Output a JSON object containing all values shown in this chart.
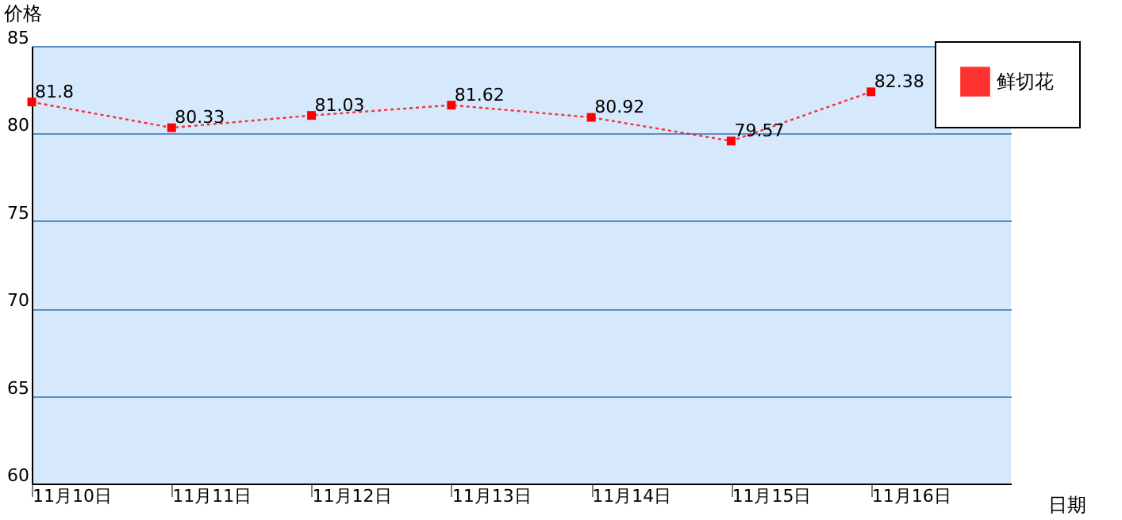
{
  "chart_data": {
    "type": "line",
    "xlabel": "日期",
    "ylabel": "价格",
    "categories": [
      "11月10日",
      "11月11日",
      "11月12日",
      "11月13日",
      "11月14日",
      "11月15日",
      "11月16日"
    ],
    "series": [
      {
        "name": "鲜切花",
        "color": "#ff0000",
        "values": [
          81.8,
          80.33,
          81.03,
          81.62,
          80.92,
          79.57,
          82.38
        ]
      }
    ],
    "ylim": [
      60,
      85
    ],
    "yticks": [
      60,
      65,
      70,
      75,
      80,
      85
    ],
    "grid": "y",
    "legend": "top right",
    "marker": "square",
    "line_style": "dotted",
    "data_labels": true
  }
}
